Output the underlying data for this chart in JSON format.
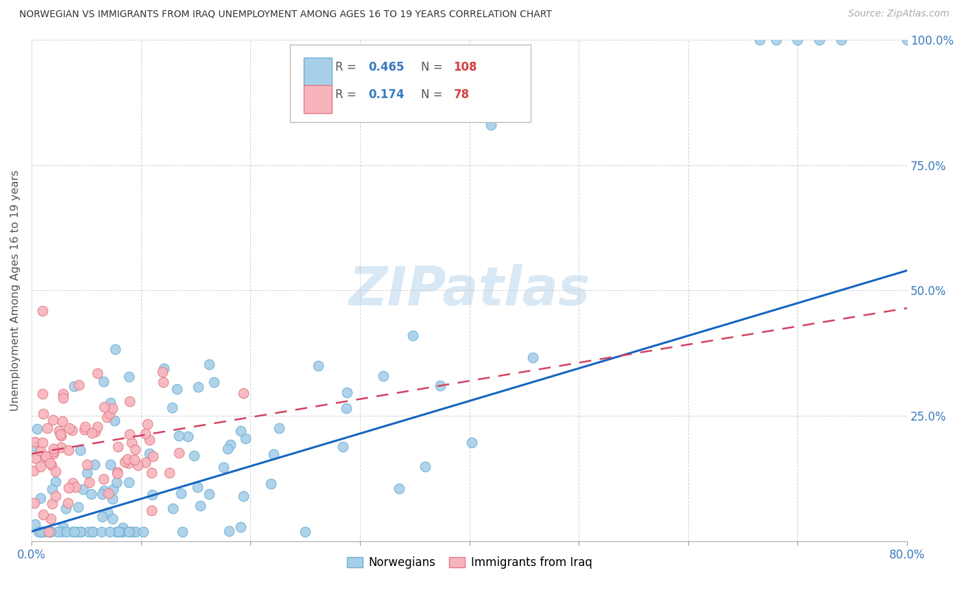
{
  "title": "NORWEGIAN VS IMMIGRANTS FROM IRAQ UNEMPLOYMENT AMONG AGES 16 TO 19 YEARS CORRELATION CHART",
  "source": "Source: ZipAtlas.com",
  "ylabel": "Unemployment Among Ages 16 to 19 years",
  "legend_r1": "R = 0.465",
  "legend_n1": "N = 108",
  "legend_r2": "R =  0.174",
  "legend_n2": "N =  78",
  "norwegian_color": "#a8cfe8",
  "norwegian_edge": "#6baed6",
  "iraq_color": "#f8b4bc",
  "iraq_edge": "#e07a86",
  "norwegian_line_color": "#1565c0",
  "iraq_line_color": "#d44060",
  "watermark_color": "#c8dff0",
  "xlim": [
    0.0,
    0.8
  ],
  "ylim": [
    0.0,
    1.0
  ],
  "right_yticks": [
    0.0,
    0.25,
    0.5,
    0.75,
    1.0
  ],
  "right_yticklabels": [
    "",
    "25.0%",
    "50.0%",
    "75.0%",
    "100.0%"
  ]
}
